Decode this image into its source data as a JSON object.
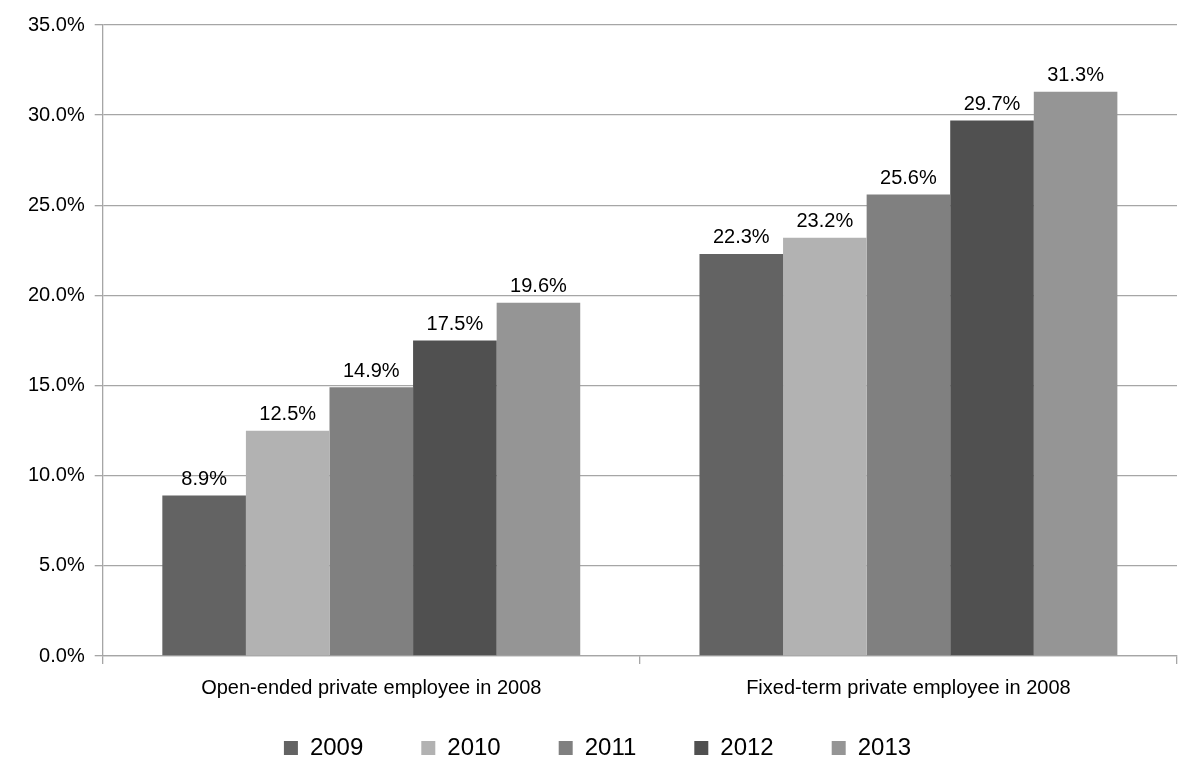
{
  "chart_data": {
    "type": "bar",
    "categories": [
      "Open-ended private employee in 2008",
      "Fixed-term private employee in 2008"
    ],
    "series": [
      {
        "name": "2009",
        "color": "#636363",
        "values": [
          8.9,
          22.3
        ],
        "value_labels": [
          "8.9%",
          "22.3%"
        ]
      },
      {
        "name": "2010",
        "color": "#b2b2b2",
        "values": [
          12.5,
          23.2
        ],
        "value_labels": [
          "12.5%",
          "23.2%"
        ]
      },
      {
        "name": "2011",
        "color": "#808080",
        "values": [
          14.9,
          25.6
        ],
        "value_labels": [
          "14.9%",
          "25.6%"
        ]
      },
      {
        "name": "2012",
        "color": "#505050",
        "values": [
          17.5,
          29.7
        ],
        "value_labels": [
          "17.5%",
          "29.7%"
        ]
      },
      {
        "name": "2013",
        "color": "#959595",
        "values": [
          19.6,
          31.3
        ],
        "value_labels": [
          "19.6%",
          "31.3%"
        ]
      }
    ],
    "ylim": [
      0,
      35
    ],
    "yticks": [
      {
        "value": 0,
        "label": "0.0%"
      },
      {
        "value": 5,
        "label": "5.0%"
      },
      {
        "value": 10,
        "label": "10.0%"
      },
      {
        "value": 15,
        "label": "15.0%"
      },
      {
        "value": 20,
        "label": "20.0%"
      },
      {
        "value": 25,
        "label": "25.0%"
      },
      {
        "value": 30,
        "label": "30.0%"
      },
      {
        "value": 35,
        "label": "35.0%"
      }
    ],
    "grid": "y",
    "legend": "bottom"
  }
}
